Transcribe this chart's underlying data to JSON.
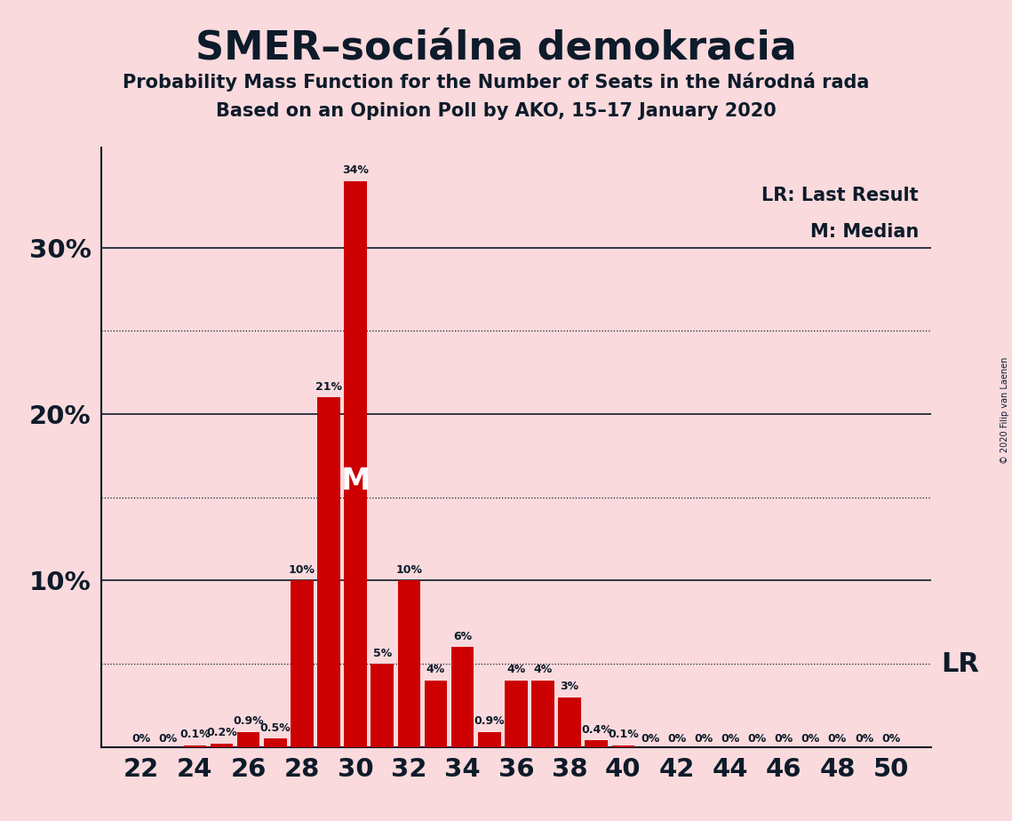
{
  "title": "SMER–sociálna demokracia",
  "subtitle1": "Probability Mass Function for the Number of Seats in the Národná rada",
  "subtitle2": "Based on an Opinion Poll by AKO, 15–17 January 2020",
  "copyright": "© 2020 Filip van Laenen",
  "background_color": "#fadadd",
  "bar_color": "#cc0000",
  "seats": [
    22,
    23,
    24,
    25,
    26,
    27,
    28,
    29,
    30,
    31,
    32,
    33,
    34,
    35,
    36,
    37,
    38,
    39,
    40,
    41,
    42,
    43,
    44,
    45,
    46,
    47,
    48,
    49,
    50
  ],
  "probabilities": [
    0.0,
    0.0,
    0.1,
    0.2,
    0.9,
    0.5,
    10.0,
    21.0,
    34.0,
    5.0,
    10.0,
    4.0,
    6.0,
    0.9,
    4.0,
    4.0,
    3.0,
    0.4,
    0.1,
    0.0,
    0.0,
    0.0,
    0.0,
    0.0,
    0.0,
    0.0,
    0.0,
    0.0,
    0.0
  ],
  "labels": [
    "0%",
    "0%",
    "0.1%",
    "0.2%",
    "0.9%",
    "0.5%",
    "10%",
    "21%",
    "34%",
    "5%",
    "10%",
    "4%",
    "6%",
    "0.9%",
    "4%",
    "4%",
    "3%",
    "0.4%",
    "0.1%",
    "0%",
    "0%",
    "0%",
    "0%",
    "0%",
    "0%",
    "0%",
    "0%",
    "0%",
    "0%"
  ],
  "show_label_threshold": 0.0,
  "median_seat": 30,
  "lr_value": 5.0,
  "ylim_max": 36,
  "solid_grid_lines": [
    10,
    20,
    30
  ],
  "dotted_grid_lines": [
    5,
    15,
    25
  ],
  "ytick_positions": [
    10,
    20,
    30
  ],
  "ytick_labels": [
    "10%",
    "20%",
    "30%"
  ],
  "xmin": 20.5,
  "xmax": 51.5,
  "bar_width": 0.85,
  "title_fontsize": 32,
  "subtitle_fontsize": 15,
  "tick_fontsize": 21,
  "label_fontsize": 9,
  "legend_fontsize": 15,
  "lr_fontsize": 22,
  "median_fontsize": 24,
  "copyright_fontsize": 7,
  "text_color": "#0d1b2a"
}
